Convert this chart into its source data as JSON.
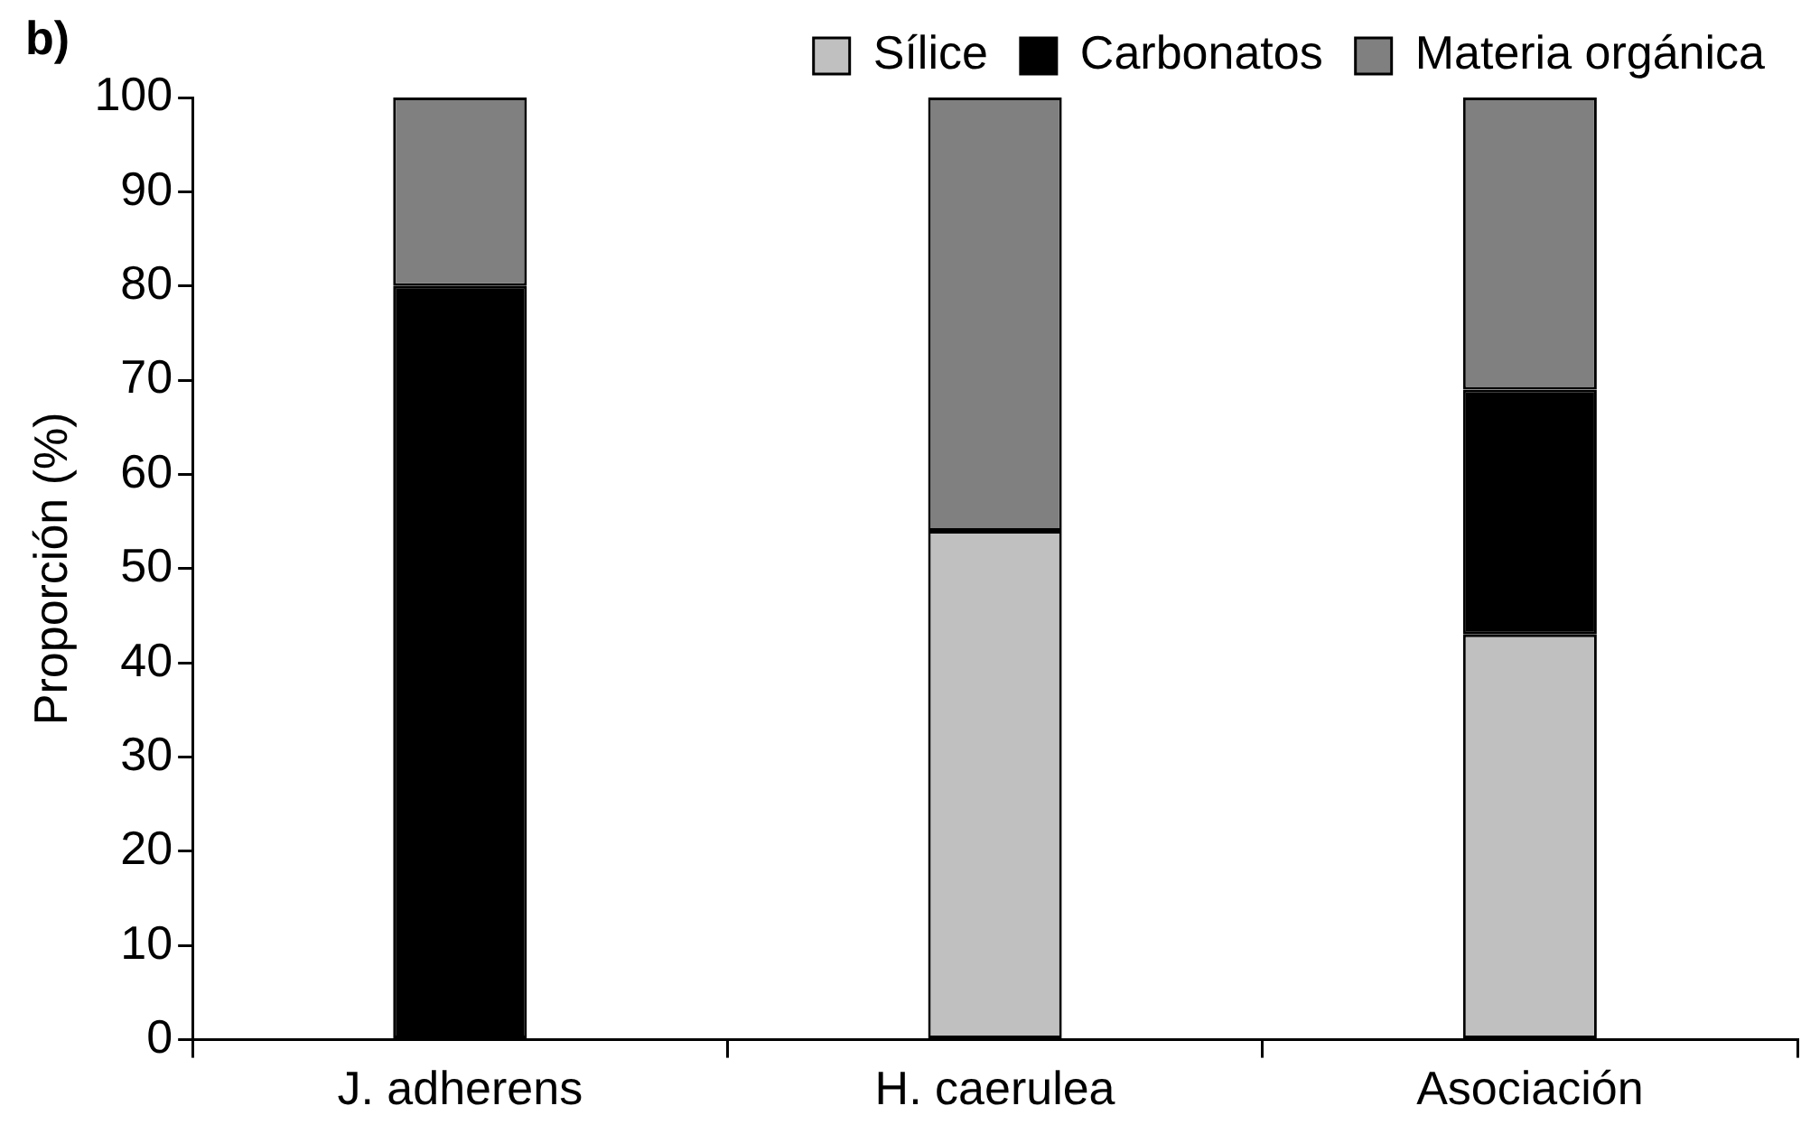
{
  "chart_data": {
    "type": "bar",
    "title": "b)",
    "ylabel": "Proporción (%)",
    "stacked": true,
    "legend": "top",
    "grid": false,
    "categories": [
      "J. adherens",
      "H. caerulea",
      "Asociación"
    ],
    "series": [
      {
        "name": "Sílice",
        "color": "#c0c0c0",
        "values": [
          0,
          54,
          43
        ]
      },
      {
        "name": "Carbonatos",
        "color": "#000000",
        "values": [
          80,
          0,
          26
        ]
      },
      {
        "name": "Materia orgánica",
        "color": "#808080",
        "values": [
          20,
          46,
          31
        ]
      }
    ],
    "ylim": [
      0,
      100
    ],
    "yticks": [
      0,
      10,
      20,
      30,
      40,
      50,
      60,
      70,
      80,
      90,
      100
    ]
  }
}
